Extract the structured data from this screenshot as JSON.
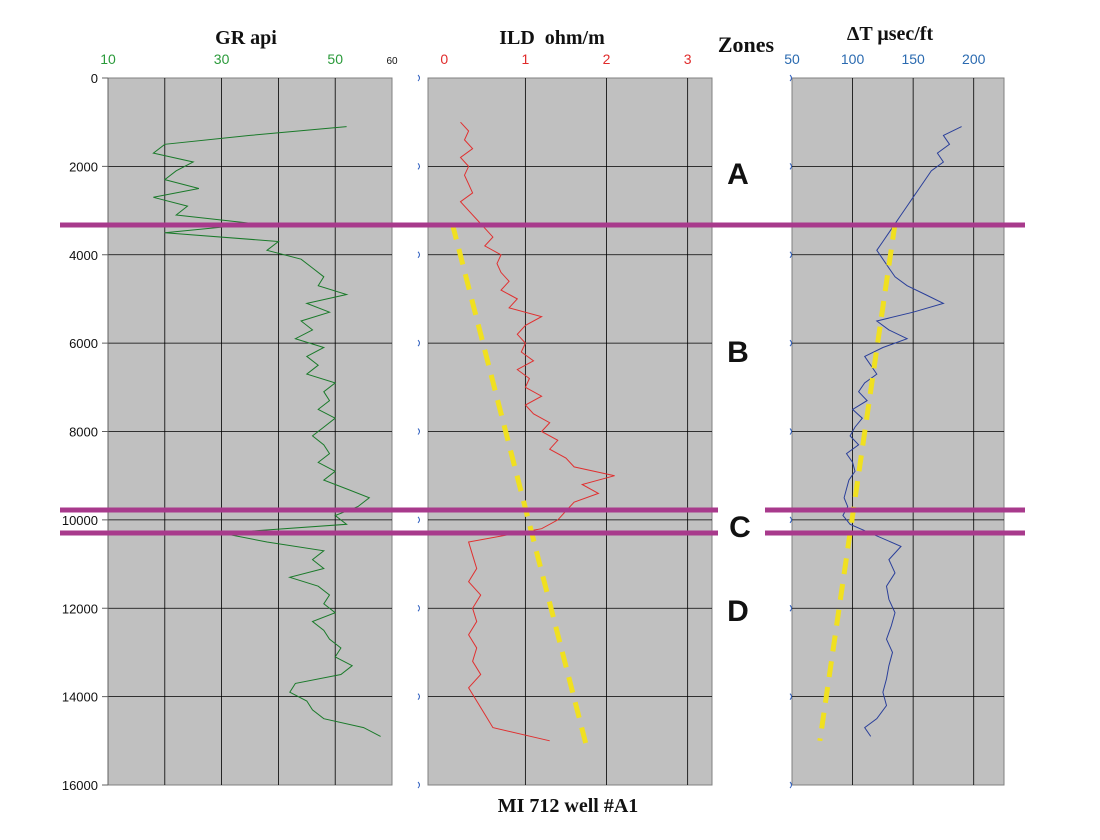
{
  "figure_caption": "MI 712 well #A1",
  "zones_heading": "Zones",
  "zone_labels": [
    "A",
    "B",
    "C",
    "D"
  ],
  "colors": {
    "panel_bg": "#c0c0c0",
    "gr": "#1a7a2a",
    "ild": "#e03030",
    "dt": "#2a3f9a",
    "trend": "#f0e020",
    "zone_line": "#a83a8c",
    "gr_ticks": "#2a9a3a",
    "ild_ticks": "#e02a2a",
    "dt_ticks": "#2a6ab0"
  },
  "chart_data": [
    {
      "type": "line",
      "title": "GR api",
      "x_ticks": [
        "10",
        "30",
        "50",
        "60"
      ],
      "xlim": [
        10,
        60
      ],
      "depth_ticks": [
        "0",
        "2000",
        "4000",
        "6000",
        "8000",
        "10000",
        "12000",
        "14000",
        "16000"
      ],
      "ylim": [
        0,
        16000
      ],
      "grid": true,
      "series": [
        {
          "depth": [
            1100,
            1300,
            1500,
            1700,
            1900,
            2100,
            2300,
            2500,
            2700,
            2900,
            3100,
            3300,
            3500,
            3700,
            3900,
            4100,
            4300,
            4500,
            4700,
            4900,
            5100,
            5300,
            5500,
            5700,
            5900,
            6100,
            6300,
            6500,
            6700,
            6900,
            7100,
            7300,
            7500,
            7700,
            7900,
            8100,
            8300,
            8500,
            8700,
            8900,
            9100,
            9300,
            9500,
            9700,
            9900,
            10100,
            10300,
            10500,
            10700,
            10900,
            11100,
            11300,
            11500,
            11700,
            11900,
            12100,
            12300,
            12500,
            12700,
            12900,
            13100,
            13300,
            13500,
            13700,
            13900,
            14100,
            14300,
            14500,
            14700,
            14900
          ],
          "values": [
            52,
            35,
            20,
            18,
            25,
            22,
            20,
            26,
            18,
            24,
            22,
            36,
            20,
            40,
            38,
            44,
            46,
            48,
            47,
            52,
            45,
            49,
            44,
            46,
            43,
            48,
            45,
            47,
            45,
            50,
            48,
            49,
            47,
            50,
            48,
            46,
            48,
            49,
            47,
            50,
            48,
            52,
            56,
            54,
            50,
            52,
            30,
            38,
            48,
            46,
            48,
            42,
            47,
            49,
            48,
            50,
            46,
            48,
            49,
            51,
            50,
            53,
            51,
            43,
            42,
            45,
            46,
            48,
            55,
            58
          ]
        }
      ]
    },
    {
      "type": "line",
      "title": "ILD  ohm/m",
      "x_ticks": [
        "0",
        "1",
        "2",
        "3"
      ],
      "xlim": [
        -0.2,
        3.3
      ],
      "depth_ticks": [],
      "ylim": [
        0,
        16000
      ],
      "grid": true,
      "series": [
        {
          "depth": [
            1000,
            1200,
            1400,
            1600,
            1800,
            2000,
            2200,
            2400,
            2600,
            2800,
            3000,
            3200,
            3400,
            3600,
            3800,
            4000,
            4200,
            4400,
            4600,
            4800,
            5000,
            5200,
            5400,
            5600,
            5800,
            6000,
            6200,
            6400,
            6600,
            6800,
            7000,
            7200,
            7400,
            7600,
            7800,
            8000,
            8200,
            8400,
            8600,
            8800,
            9000,
            9200,
            9400,
            9600,
            9800,
            10000,
            10200,
            10500,
            10800,
            11100,
            11400,
            11700,
            12000,
            12300,
            12600,
            12900,
            13200,
            13500,
            13800,
            14100,
            14400,
            14700,
            15000
          ],
          "values": [
            0.2,
            0.3,
            0.25,
            0.35,
            0.2,
            0.3,
            0.25,
            0.3,
            0.35,
            0.2,
            0.3,
            0.4,
            0.5,
            0.6,
            0.5,
            0.7,
            0.65,
            0.7,
            0.8,
            0.7,
            0.9,
            0.8,
            1.2,
            1.0,
            0.9,
            1.0,
            0.95,
            1.1,
            0.9,
            1.05,
            1.0,
            1.2,
            1.0,
            1.1,
            1.3,
            1.2,
            1.4,
            1.3,
            1.5,
            1.6,
            2.1,
            1.7,
            1.9,
            1.6,
            1.5,
            1.4,
            1.2,
            0.3,
            0.35,
            0.4,
            0.3,
            0.45,
            0.35,
            0.4,
            0.3,
            0.4,
            0.35,
            0.45,
            0.3,
            0.4,
            0.5,
            0.6,
            1.3
          ]
        }
      ],
      "trend_depth": [
        3300,
        15100
      ],
      "trend_values": [
        0.1,
        1.75
      ]
    },
    {
      "type": "line",
      "title": "ΔT μsec/ft",
      "x_ticks": [
        "50",
        "100",
        "150",
        "200"
      ],
      "xlim": [
        50,
        225
      ],
      "depth_ticks": [],
      "ylim": [
        0,
        16000
      ],
      "grid": true,
      "series": [
        {
          "depth": [
            1100,
            1300,
            1500,
            1700,
            1900,
            2100,
            2300,
            2500,
            2700,
            2900,
            3100,
            3300,
            3500,
            3700,
            3900,
            4100,
            4300,
            4500,
            4700,
            4900,
            5100,
            5300,
            5500,
            5700,
            5900,
            6100,
            6300,
            6500,
            6700,
            6900,
            7100,
            7300,
            7500,
            7700,
            7900,
            8100,
            8300,
            8500,
            8700,
            8900,
            9100,
            9300,
            9500,
            9700,
            9900,
            10100,
            10600,
            10900,
            11200,
            11500,
            11800,
            12100,
            12400,
            12700,
            13000,
            13300,
            13600,
            13900,
            14200,
            14500,
            14700,
            14900
          ],
          "values": [
            190,
            175,
            180,
            170,
            175,
            165,
            160,
            155,
            150,
            145,
            140,
            135,
            130,
            125,
            120,
            125,
            130,
            135,
            145,
            160,
            175,
            150,
            120,
            130,
            145,
            125,
            110,
            115,
            120,
            110,
            105,
            112,
            100,
            108,
            102,
            98,
            105,
            95,
            100,
            102,
            97,
            95,
            93,
            96,
            92,
            98,
            140,
            130,
            135,
            128,
            130,
            135,
            132,
            128,
            133,
            130,
            128,
            125,
            128,
            120,
            110,
            115
          ]
        }
      ],
      "trend_depth": [
        3300,
        15000
      ],
      "trend_values": [
        135,
        73
      ]
    }
  ]
}
